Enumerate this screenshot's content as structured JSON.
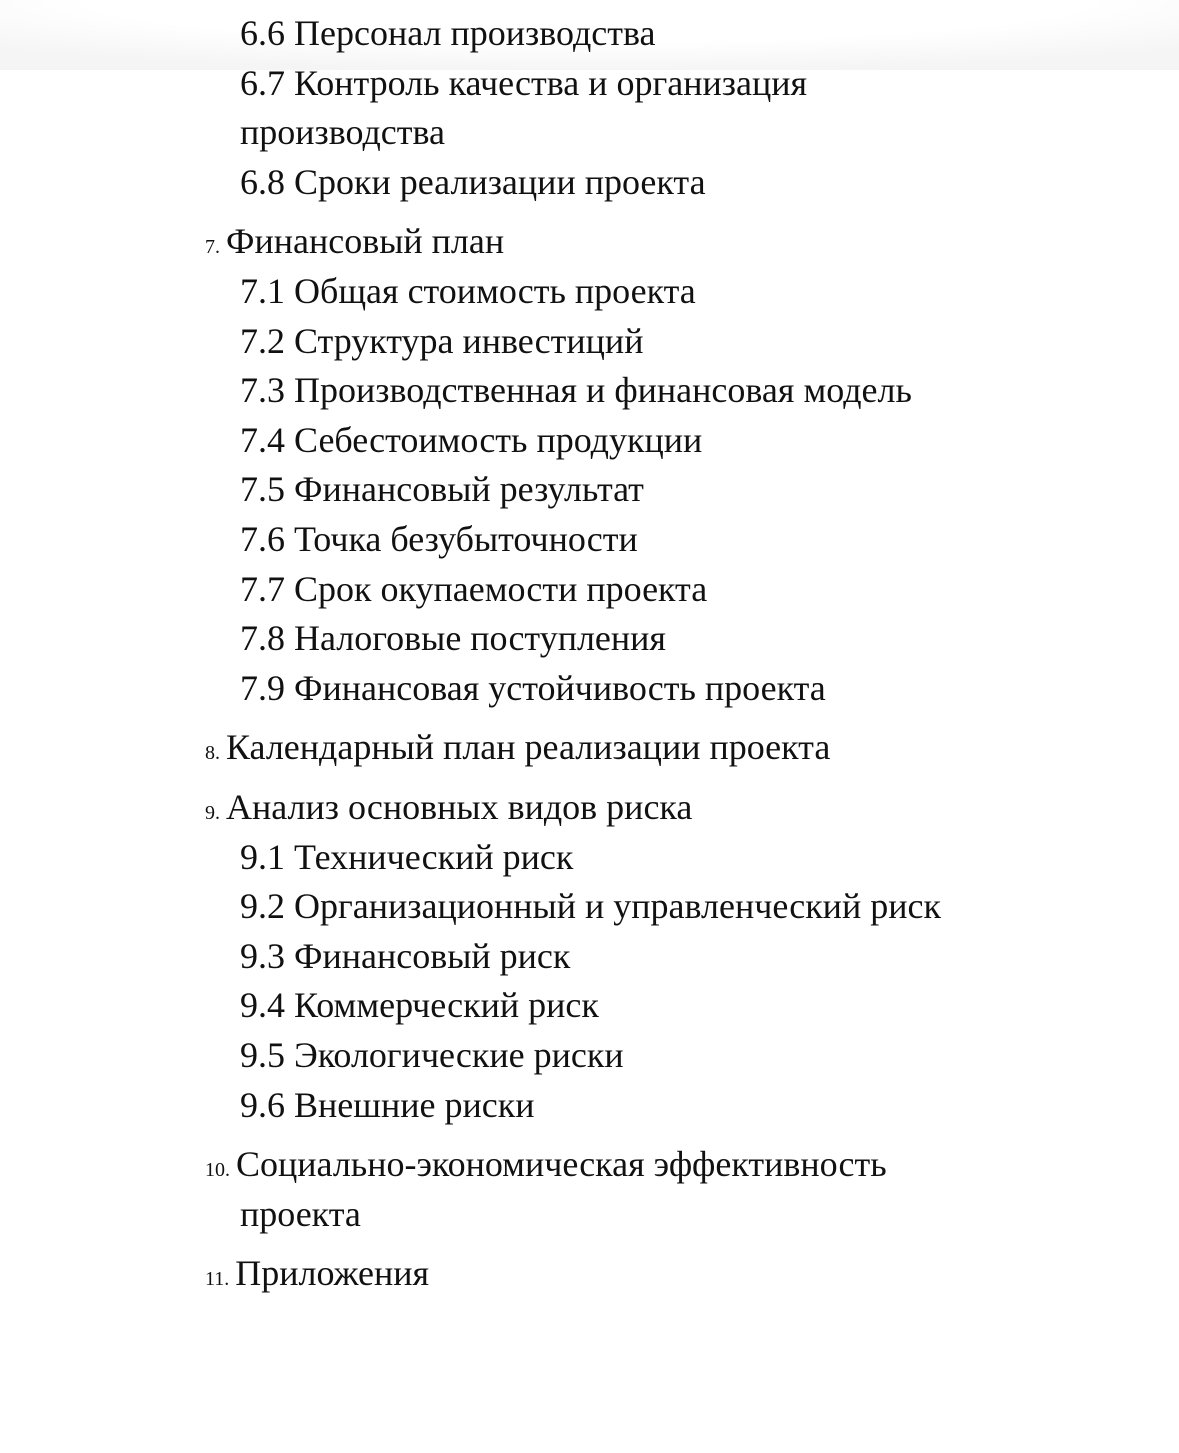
{
  "toc": {
    "items": [
      {
        "type": "sub",
        "label": "6.6 Персонал производства"
      },
      {
        "type": "sub",
        "label": "6.7 Контроль качества и организация"
      },
      {
        "type": "cont",
        "label": "производства"
      },
      {
        "type": "sub",
        "label": "6.8 Сроки реализации проекта"
      },
      {
        "type": "top",
        "num": "7.",
        "label": "Финансовый план"
      },
      {
        "type": "sub",
        "label": "7.1 Общая стоимость проекта"
      },
      {
        "type": "sub",
        "label": "7.2 Структура инвестиций"
      },
      {
        "type": "sub",
        "label": "7.3 Производственная и финансовая модель"
      },
      {
        "type": "sub",
        "label": "7.4 Себестоимость продукции"
      },
      {
        "type": "sub",
        "label": "7.5 Финансовый результат"
      },
      {
        "type": "sub",
        "label": "7.6 Точка безубыточности"
      },
      {
        "type": "sub",
        "label": "7.7 Срок окупаемости проекта"
      },
      {
        "type": "sub",
        "label": "7.8 Налоговые поступления"
      },
      {
        "type": "sub",
        "label": "7.9 Финансовая устойчивость проекта"
      },
      {
        "type": "top",
        "num": "8.",
        "label": "Календарный план реализации проекта"
      },
      {
        "type": "top",
        "num": "9.",
        "label": "Анализ основных видов риска"
      },
      {
        "type": "sub",
        "label": "9.1 Технический риск"
      },
      {
        "type": "sub",
        "label": "9.2 Организационный и управленческий риск"
      },
      {
        "type": "sub",
        "label": "9.3 Финансовый риск"
      },
      {
        "type": "sub",
        "label": "9.4 Коммерческий риск"
      },
      {
        "type": "sub",
        "label": "9.5 Экологические риски"
      },
      {
        "type": "sub",
        "label": "9.6 Внешние риски"
      },
      {
        "type": "top",
        "num": "10.",
        "label": "Социально-экономическая эффективность"
      },
      {
        "type": "cont",
        "label": "проекта"
      },
      {
        "type": "top",
        "num": "11.",
        "label": "Приложения"
      }
    ]
  }
}
